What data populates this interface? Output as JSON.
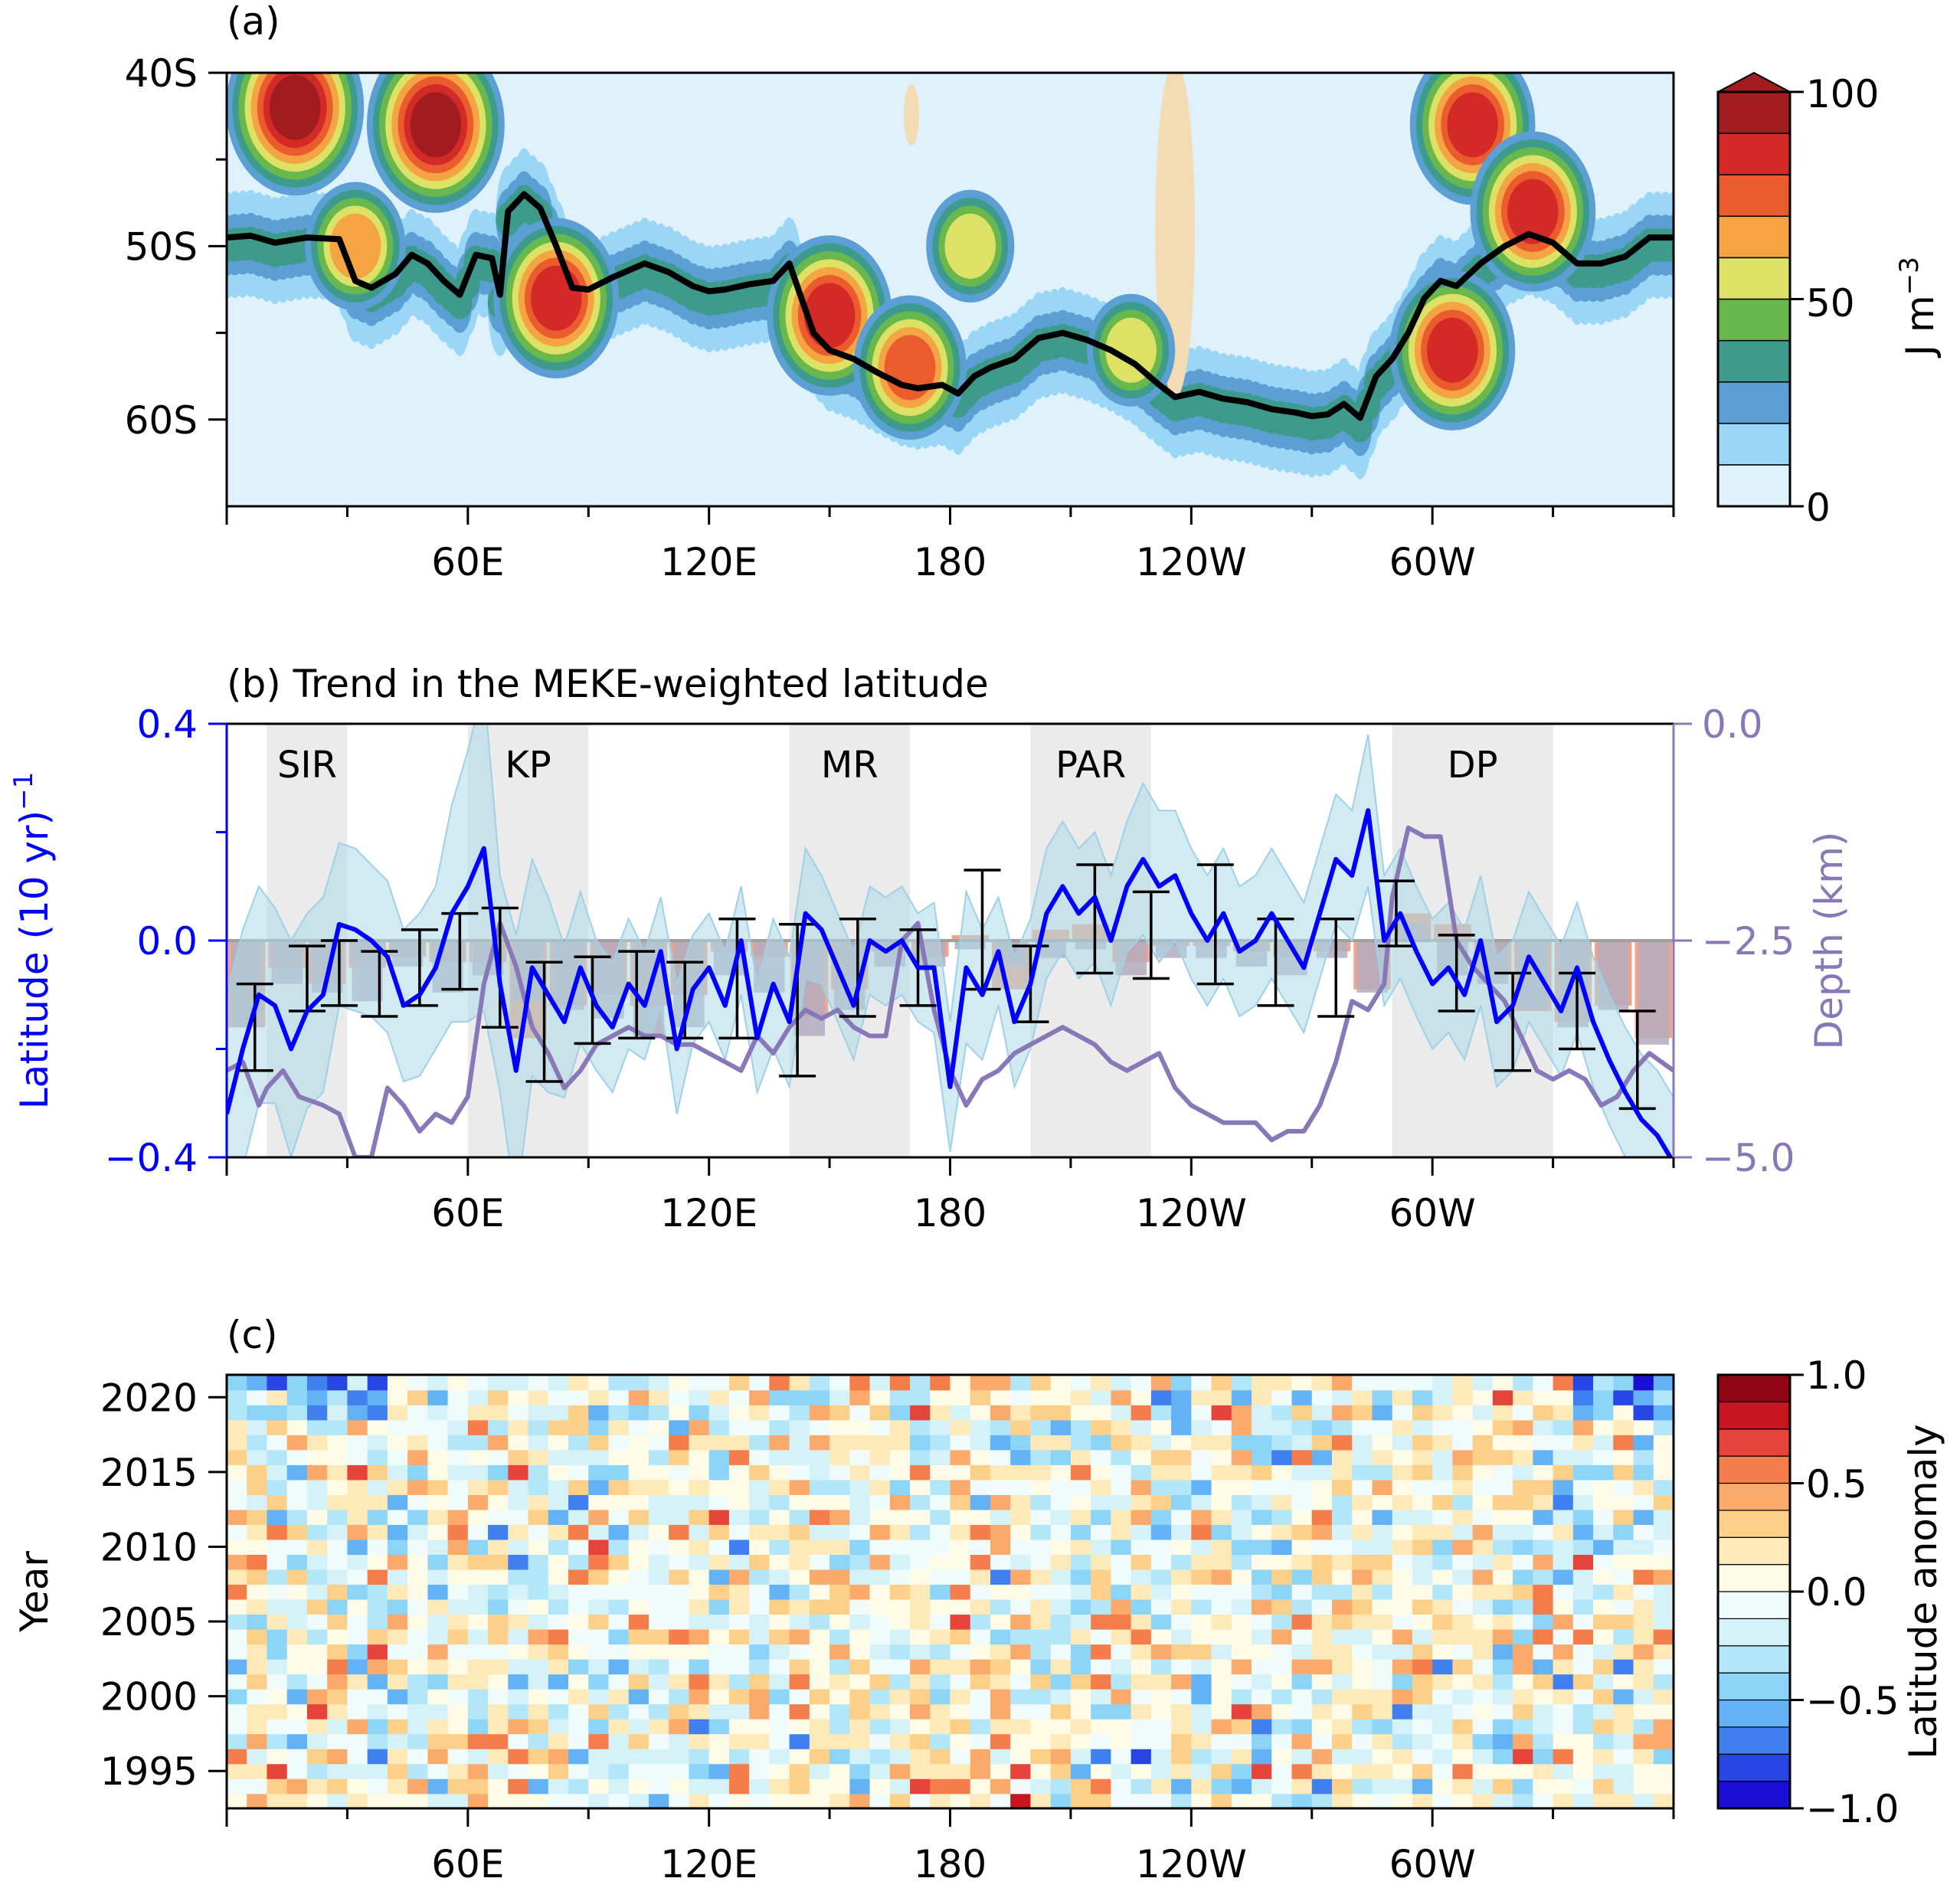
{
  "colors": {
    "meke_levels": [
      "#dff1fb",
      "#9ad6f5",
      "#5b9fd4",
      "#3d9b8c",
      "#69b84d",
      "#dde165",
      "#f4a442",
      "#ea5c2e",
      "#d42a27",
      "#a11c1e"
    ],
    "front_line": "#000000",
    "trend_line": "#0000ff",
    "trend_band": "#add8e6",
    "depth_line": "#8878b8",
    "bar_negative": "#f0a58a",
    "bar_depth": "#b4acc0",
    "region_shade": "#ebebeb",
    "anomaly_levels": [
      "#1b0ed6",
      "#2846e4",
      "#3f80ee",
      "#63b2f5",
      "#8cd4f8",
      "#b3e6f8",
      "#d4f2f8",
      "#f0fbfc",
      "#fefbe6",
      "#fee9b8",
      "#fdd08a",
      "#fbaa6b",
      "#f57c4b",
      "#e6443a",
      "#c8151f",
      "#8f0516"
    ]
  },
  "x_axis": {
    "ticks": [
      "60E",
      "120E",
      "180",
      "120W",
      "60W"
    ]
  },
  "panel_a": {
    "label": "(a)",
    "y_ticks": [
      "40S",
      "50S",
      "60S"
    ],
    "colorbar": {
      "unit": "J m",
      "unit_exp": "−3",
      "ticks": [
        "100",
        "50",
        "0"
      ]
    }
  },
  "panel_b": {
    "title": "(b) Trend in the MEKE-weighted latitude",
    "left_label": "Latitude (10 yr)",
    "left_label_exp": "−1",
    "right_label": "Depth (km)",
    "left_ticks": [
      "0.4",
      "0.0",
      "−0.4"
    ],
    "right_ticks": [
      "0.0",
      "−2.5",
      "−5.0"
    ],
    "regions": [
      {
        "name": "SIR",
        "lon_start": 10,
        "lon_end": 30
      },
      {
        "name": "KP",
        "lon_start": 60,
        "lon_end": 90
      },
      {
        "name": "MR",
        "lon_start": 140,
        "lon_end": 170
      },
      {
        "name": "PAR",
        "lon_start": 200,
        "lon_end": 230
      },
      {
        "name": "DP",
        "lon_start": 290,
        "lon_end": 330
      }
    ]
  },
  "panel_c": {
    "label": "(c)",
    "y_label": "Year",
    "y_ticks": [
      "2020",
      "2015",
      "2010",
      "2005",
      "2000",
      "1995"
    ],
    "colorbar": {
      "label": "Latitude anomaly",
      "ticks": [
        "1.0",
        "0.5",
        "0.0",
        "−0.5",
        "−1.0"
      ]
    }
  },
  "chart_data": [
    {
      "type": "heatmap",
      "title": "(a)",
      "variable": "MEKE",
      "unit": "J m−3",
      "x_range": [
        0,
        360
      ],
      "y_range": [
        -65,
        -40
      ],
      "color_range": [
        0,
        100
      ],
      "hotspots": [
        {
          "lon": 17,
          "lat": -42,
          "value": 95
        },
        {
          "lon": 52,
          "lat": -43,
          "value": 100
        },
        {
          "lon": 32,
          "lat": -50,
          "value": 70
        },
        {
          "lon": 82,
          "lat": -53,
          "value": 90
        },
        {
          "lon": 150,
          "lat": -54,
          "value": 85
        },
        {
          "lon": 170,
          "lat": -57,
          "value": 80
        },
        {
          "lon": 185,
          "lat": -50,
          "value": 55
        },
        {
          "lon": 225,
          "lat": -56,
          "value": 60
        },
        {
          "lon": 305,
          "lat": -56,
          "value": 85
        },
        {
          "lon": 310,
          "lat": -43,
          "value": 90
        },
        {
          "lon": 325,
          "lat": -48,
          "value": 90
        }
      ],
      "front_line": {
        "lon": [
          0,
          6,
          12,
          20,
          28,
          32,
          36,
          42,
          46,
          50,
          54,
          58,
          62,
          66,
          68,
          70,
          74,
          78,
          82,
          86,
          90,
          96,
          104,
          110,
          116,
          120,
          124,
          130,
          136,
          140,
          146,
          150,
          156,
          162,
          168,
          172,
          178,
          182,
          186,
          190,
          196,
          202,
          208,
          214,
          220,
          226,
          232,
          236,
          242,
          248,
          254,
          260,
          266,
          270,
          274,
          278,
          282,
          286,
          290,
          294,
          298,
          302,
          306,
          312,
          318,
          324,
          330,
          336,
          342,
          348,
          354,
          360
        ],
        "lat": [
          -49.5,
          -49.4,
          -49.8,
          -49.5,
          -49.6,
          -52,
          -52.4,
          -51.6,
          -50.5,
          -51,
          -52,
          -52.8,
          -50.5,
          -50.7,
          -52.8,
          -48,
          -47,
          -47.8,
          -50,
          -52.4,
          -52.5,
          -51.8,
          -51,
          -51.5,
          -52.3,
          -52.6,
          -52.5,
          -52.2,
          -52,
          -51,
          -55,
          -56,
          -56.5,
          -57.3,
          -58,
          -58.2,
          -58,
          -58.5,
          -57.5,
          -57,
          -56.5,
          -55.3,
          -55,
          -55.4,
          -56,
          -56.8,
          -58,
          -58.7,
          -58.4,
          -58.8,
          -59,
          -59.4,
          -59.6,
          -59.8,
          -59.7,
          -59.1,
          -59.9,
          -57.5,
          -56.5,
          -55,
          -53,
          -52,
          -52.3,
          -51,
          -50,
          -49.3,
          -49.8,
          -51,
          -51,
          -50.6,
          -49.5,
          -49.5
        ]
      }
    },
    {
      "type": "line",
      "title": "(b) Trend in the MEKE-weighted latitude",
      "xlabel": "",
      "ylabel": "Latitude (10 yr)−1",
      "y2label": "Depth (km)",
      "x_range": [
        0,
        360
      ],
      "ylim": [
        -0.4,
        0.4
      ],
      "y2lim": [
        -5.0,
        0.0
      ],
      "series": [
        {
          "kind": "trend",
          "x": [
            0,
            4,
            8,
            12,
            16,
            20,
            24,
            28,
            32,
            36,
            40,
            44,
            48,
            52,
            56,
            60,
            64,
            68,
            72,
            76,
            80,
            84,
            88,
            92,
            96,
            100,
            104,
            108,
            112,
            116,
            120,
            124,
            128,
            132,
            136,
            140,
            144,
            148,
            152,
            156,
            160,
            164,
            168,
            172,
            176,
            180,
            184,
            188,
            192,
            196,
            200,
            204,
            208,
            212,
            216,
            220,
            224,
            228,
            232,
            236,
            240,
            244,
            248,
            252,
            256,
            260,
            264,
            268,
            272,
            276,
            280,
            284,
            288,
            292,
            296,
            300,
            304,
            308,
            312,
            316,
            320,
            324,
            328,
            332,
            336,
            340,
            344,
            348,
            352,
            356,
            360
          ],
          "values": [
            -0.32,
            -0.2,
            -0.1,
            -0.12,
            -0.2,
            -0.13,
            -0.1,
            0.03,
            0.02,
            0.0,
            -0.03,
            -0.12,
            -0.1,
            -0.05,
            0.05,
            0.1,
            0.17,
            -0.08,
            -0.24,
            -0.05,
            -0.1,
            -0.15,
            -0.05,
            -0.12,
            -0.16,
            -0.08,
            -0.12,
            -0.02,
            -0.2,
            -0.09,
            -0.05,
            -0.12,
            0.0,
            -0.18,
            -0.08,
            -0.15,
            0.05,
            0.02,
            -0.05,
            -0.12,
            0.0,
            -0.02,
            0.0,
            -0.05,
            -0.05,
            -0.27,
            -0.05,
            -0.1,
            -0.02,
            -0.15,
            -0.08,
            0.05,
            0.1,
            0.05,
            0.08,
            0.0,
            0.1,
            0.15,
            0.1,
            0.12,
            0.05,
            0.0,
            0.05,
            -0.02,
            0.0,
            0.05,
            0.0,
            -0.05,
            0.05,
            0.15,
            0.12,
            0.24,
            0.0,
            0.05,
            -0.02,
            -0.08,
            -0.05,
            -0.1,
            0.0,
            -0.15,
            -0.12,
            -0.03,
            -0.08,
            -0.13,
            -0.05,
            -0.15,
            -0.22,
            -0.28,
            -0.33,
            -0.36,
            -0.41
          ],
          "spread": [
            0.22,
            0.22,
            0.2,
            0.18,
            0.2,
            0.18,
            0.18,
            0.15,
            0.15,
            0.14,
            0.14,
            0.14,
            0.15,
            0.15,
            0.2,
            0.25,
            0.3,
            0.2,
            0.25,
            0.2,
            0.18,
            0.14,
            0.14,
            0.12,
            0.12,
            0.12,
            0.1,
            0.1,
            0.12,
            0.1,
            0.1,
            0.1,
            0.1,
            0.1,
            0.12,
            0.12,
            0.12,
            0.1,
            0.1,
            0.1,
            0.1,
            0.1,
            0.1,
            0.1,
            0.12,
            0.12,
            0.14,
            0.12,
            0.1,
            0.12,
            0.12,
            0.12,
            0.12,
            0.12,
            0.12,
            0.12,
            0.12,
            0.14,
            0.14,
            0.12,
            0.12,
            0.12,
            0.12,
            0.12,
            0.12,
            0.12,
            0.12,
            0.12,
            0.12,
            0.12,
            0.12,
            0.14,
            0.12,
            0.12,
            0.12,
            0.12,
            0.12,
            0.12,
            0.12,
            0.12,
            0.12,
            0.12,
            0.12,
            0.12,
            0.12,
            0.12,
            0.12,
            0.12,
            0.12,
            0.12,
            0.12
          ]
        },
        {
          "kind": "bottom_depth",
          "axis": "right",
          "x": [
            0,
            4,
            8,
            10,
            14,
            18,
            24,
            28,
            32,
            36,
            40,
            44,
            48,
            52,
            56,
            60,
            64,
            68,
            72,
            76,
            80,
            84,
            88,
            92,
            96,
            100,
            104,
            108,
            112,
            116,
            120,
            124,
            128,
            132,
            136,
            140,
            144,
            148,
            152,
            156,
            160,
            164,
            168,
            172,
            176,
            180,
            184,
            188,
            192,
            196,
            200,
            204,
            208,
            212,
            216,
            220,
            224,
            228,
            232,
            236,
            240,
            244,
            248,
            252,
            256,
            260,
            264,
            268,
            272,
            276,
            280,
            284,
            288,
            290,
            294,
            298,
            302,
            306,
            310,
            314,
            318,
            322,
            326,
            330,
            334,
            338,
            342,
            346,
            350,
            354,
            360
          ],
          "values": [
            -4.0,
            -3.9,
            -4.4,
            -4.2,
            -4.0,
            -4.3,
            -4.4,
            -4.5,
            -5.0,
            -5.0,
            -4.2,
            -4.4,
            -4.7,
            -4.5,
            -4.6,
            -4.3,
            -3.0,
            -2.3,
            -2.8,
            -3.5,
            -3.8,
            -4.2,
            -4.0,
            -3.7,
            -3.6,
            -3.5,
            -3.6,
            -3.6,
            -3.7,
            -3.7,
            -3.8,
            -3.9,
            -4.0,
            -3.6,
            -3.8,
            -3.5,
            -3.3,
            -3.4,
            -3.3,
            -3.5,
            -3.6,
            -3.6,
            -2.5,
            -2.3,
            -3.3,
            -4.0,
            -4.4,
            -4.1,
            -4.0,
            -3.8,
            -3.7,
            -3.6,
            -3.5,
            -3.6,
            -3.7,
            -3.9,
            -4.0,
            -3.9,
            -3.8,
            -4.2,
            -4.4,
            -4.5,
            -4.6,
            -4.6,
            -4.6,
            -4.8,
            -4.7,
            -4.7,
            -4.4,
            -3.9,
            -3.2,
            -3.3,
            -3.0,
            -2.0,
            -1.2,
            -1.3,
            -1.3,
            -2.5,
            -2.8,
            -3.0,
            -3.2,
            -3.6,
            -4.0,
            -4.1,
            -4.0,
            -4.1,
            -4.4,
            -4.3,
            -4.0,
            -3.8,
            -4.0
          ]
        },
        {
          "kind": "bars",
          "x_centers": [
            5,
            15,
            25,
            35,
            45,
            55,
            65,
            75,
            85,
            95,
            105,
            115,
            125,
            135,
            145,
            155,
            165,
            175,
            185,
            195,
            205,
            215,
            225,
            235,
            245,
            255,
            265,
            275,
            285,
            295,
            305,
            315,
            325,
            335,
            345,
            355
          ],
          "trend_values": [
            -0.16,
            -0.05,
            -0.08,
            -0.05,
            -0.03,
            -0.04,
            -0.04,
            -0.18,
            -0.12,
            -0.1,
            -0.12,
            -0.1,
            -0.02,
            -0.03,
            -0.14,
            -0.09,
            -0.02,
            -0.03,
            0.01,
            -0.09,
            0.02,
            0.03,
            -0.04,
            -0.01,
            -0.01,
            -0.02,
            -0.03,
            -0.02,
            -0.09,
            0.05,
            0.03,
            -0.06,
            -0.13,
            -0.15,
            -0.12,
            -0.18
          ],
          "depth_values": [
            -3.5,
            -3.0,
            -3.1,
            -3.2,
            -2.8,
            -3.1,
            -2.9,
            -3.2,
            -3.3,
            -3.4,
            -3.6,
            -3.5,
            -2.9,
            -3.1,
            -3.6,
            -3.3,
            -2.8,
            -2.8,
            -2.6,
            -2.8,
            -2.7,
            -2.6,
            -2.9,
            -2.7,
            -2.7,
            -2.8,
            -2.9,
            -2.7,
            -3.1,
            -2.3,
            -2.9,
            -3.0,
            -3.3,
            -3.5,
            -3.3,
            -3.7
          ]
        },
        {
          "kind": "errorbars",
          "x": [
            7,
            20,
            28,
            38,
            48,
            58,
            68,
            79,
            91,
            102,
            114,
            127,
            142,
            157,
            172,
            188,
            200,
            216,
            230,
            246,
            261,
            276,
            291,
            306,
            320,
            336,
            351
          ],
          "center": [
            -0.16,
            -0.07,
            -0.06,
            -0.08,
            -0.05,
            -0.02,
            -0.05,
            -0.15,
            -0.11,
            -0.1,
            -0.11,
            -0.07,
            -0.11,
            -0.05,
            -0.05,
            0.02,
            -0.08,
            0.04,
            0.01,
            0.03,
            -0.04,
            -0.05,
            0.05,
            -0.06,
            -0.15,
            -0.13,
            -0.22
          ],
          "half_width": [
            0.08,
            0.06,
            0.06,
            0.06,
            0.07,
            0.07,
            0.11,
            0.11,
            0.08,
            0.08,
            0.07,
            0.11,
            0.14,
            0.09,
            0.07,
            0.11,
            0.07,
            0.1,
            0.08,
            0.11,
            0.08,
            0.09,
            0.06,
            0.07,
            0.09,
            0.07,
            0.09
          ]
        }
      ]
    },
    {
      "type": "heatmap",
      "title": "(c)",
      "ylabel": "Year",
      "x_range": [
        0,
        360
      ],
      "years": [
        1993,
        1994,
        1995,
        1996,
        1997,
        1998,
        1999,
        2000,
        2001,
        2002,
        2003,
        2004,
        2005,
        2006,
        2007,
        2008,
        2009,
        2010,
        2011,
        2012,
        2013,
        2014,
        2015,
        2016,
        2017,
        2018,
        2019,
        2020,
        2021
      ],
      "color_range": [
        -1.0,
        1.0
      ],
      "columns": 72
    }
  ]
}
